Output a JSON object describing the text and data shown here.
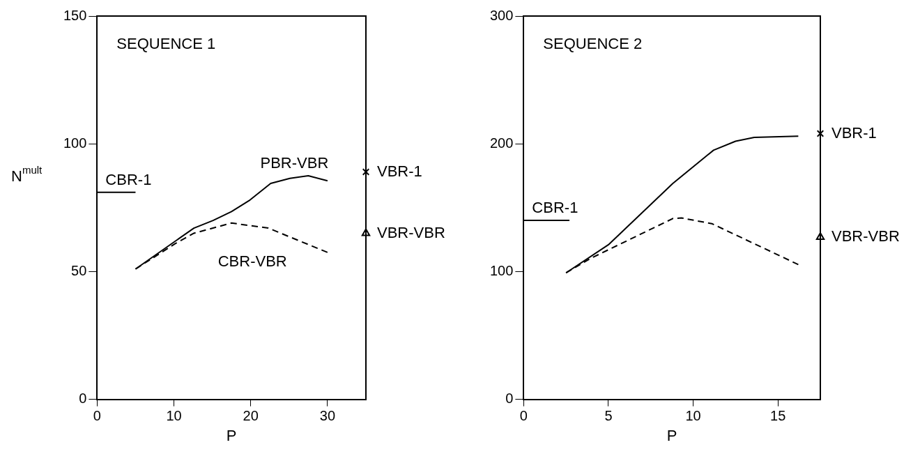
{
  "chart_data": [
    {
      "type": "line",
      "title": "SEQUENCE 1",
      "xlabel": "P",
      "ylabel": "N$^{mult}$",
      "xlim": [
        0,
        35
      ],
      "xticks": [
        0,
        10,
        20,
        30
      ],
      "ylim": [
        0,
        150
      ],
      "yticks": [
        0,
        50,
        100,
        150
      ],
      "grid": false,
      "legend": false,
      "series": [
        {
          "name": "PBR-VBR",
          "type": "line",
          "color": "#000000",
          "line_style": "solid",
          "x": [
            5,
            12.6,
            15.1,
            17.5,
            19.9,
            22.6,
            25.1,
            27.5,
            30
          ],
          "values": [
            51,
            67,
            70,
            73.5,
            78,
            84.5,
            86.5,
            87.5,
            85.5
          ]
        },
        {
          "name": "CBR-VBR",
          "type": "line",
          "color": "#000000",
          "line_style": "dashed",
          "x": [
            5,
            10.2,
            12.6,
            17.5,
            22.3,
            30
          ],
          "values": [
            51,
            61,
            65,
            69,
            67,
            57.5
          ]
        },
        {
          "name": "CBR-1",
          "type": "line",
          "color": "#000000",
          "line_style": "solid",
          "x": [
            0,
            5
          ],
          "values": [
            81,
            81
          ]
        },
        {
          "name": "VBR-1",
          "type": "scatter",
          "color": "#000000",
          "marker": "cross",
          "x": [
            35
          ],
          "values": [
            89
          ]
        },
        {
          "name": "VBR-VBR",
          "type": "scatter",
          "color": "#000000",
          "marker": "triangle",
          "x": [
            35
          ],
          "values": [
            65
          ]
        }
      ]
    },
    {
      "type": "line",
      "title": "SEQUENCE 2",
      "xlabel": "P",
      "xlim": [
        0,
        17.5
      ],
      "xticks": [
        0,
        5,
        10,
        15
      ],
      "ylim": [
        0,
        300
      ],
      "yticks": [
        0,
        100,
        200,
        300
      ],
      "grid": false,
      "legend": false,
      "series": [
        {
          "type": "line",
          "color": "#000000",
          "line_style": "solid",
          "x": [
            2.5,
            5,
            8.8,
            11.2,
            12.5,
            13.6,
            16.2
          ],
          "values": [
            99,
            121,
            169,
            195,
            202,
            205,
            206
          ]
        },
        {
          "type": "line",
          "color": "#000000",
          "line_style": "dashed",
          "x": [
            2.5,
            3.9,
            8.8,
            9.3,
            11.1,
            16.2
          ],
          "values": [
            99,
            110,
            141.5,
            142,
            137.5,
            105.5
          ]
        },
        {
          "name": "CBR-1",
          "type": "line",
          "color": "#000000",
          "line_style": "solid",
          "x": [
            0,
            2.7
          ],
          "values": [
            140,
            140
          ]
        },
        {
          "name": "VBR-1",
          "type": "scatter",
          "color": "#000000",
          "marker": "cross",
          "x": [
            17.5
          ],
          "values": [
            208
          ]
        },
        {
          "name": "VBR-VBR",
          "type": "scatter",
          "color": "#000000",
          "marker": "triangle",
          "x": [
            17.5
          ],
          "values": [
            127
          ]
        }
      ]
    }
  ]
}
